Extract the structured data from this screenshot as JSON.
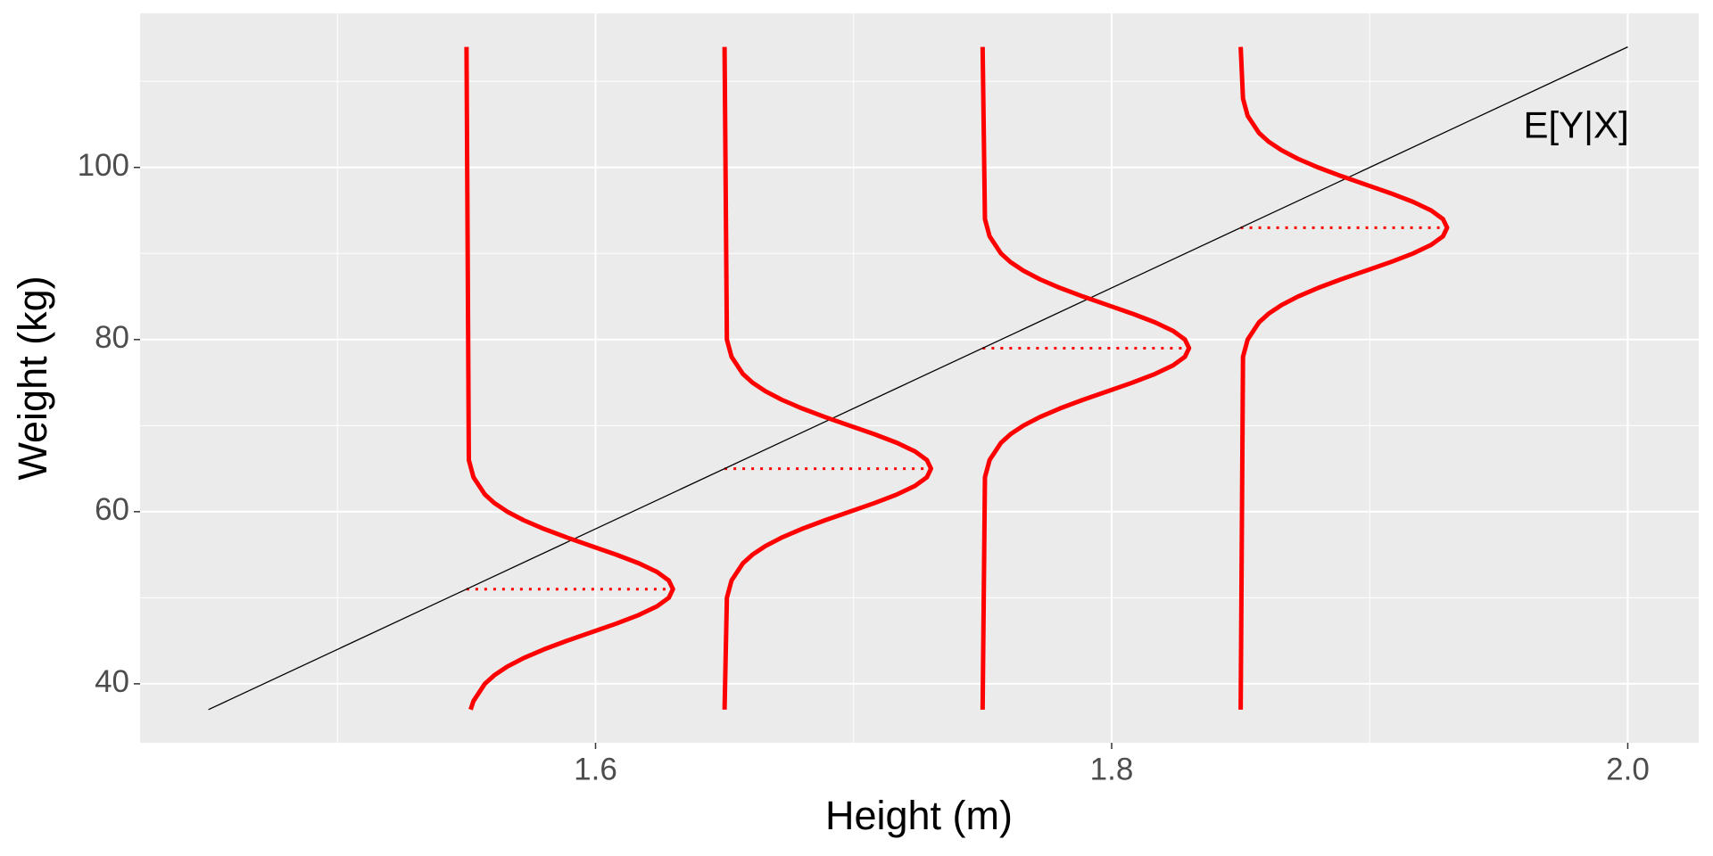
{
  "chart_data": {
    "type": "line",
    "xlabel": "Height (m)",
    "ylabel": "Weight (kg)",
    "xlim": [
      1.4235,
      2.0275
    ],
    "ylim": [
      33.15,
      117.9
    ],
    "xticks": [
      1.6,
      1.8,
      {
        "value": 2.0,
        "label": "2.0"
      }
    ],
    "yticks": [
      40,
      60,
      80,
      100
    ],
    "x_minor_grid": [
      1.5,
      1.7,
      1.9
    ],
    "y_minor_grid": [
      50,
      70,
      90,
      110
    ],
    "grid": true,
    "series": [
      {
        "color": "#ff0000",
        "x": [
          1.5516,
          1.5527,
          1.5571,
          1.5608,
          1.5658,
          1.5722,
          1.58,
          1.5889,
          1.5985,
          1.6081,
          1.6168,
          1.6238,
          1.6284,
          1.63,
          1.6284,
          1.6238,
          1.6168,
          1.6081,
          1.5985,
          1.5889,
          1.58,
          1.5722,
          1.5658,
          1.5608,
          1.5571,
          1.5527,
          1.5509,
          1.55
        ],
        "y": [
          37,
          38,
          40,
          41,
          42,
          43,
          44,
          45,
          46,
          47,
          48,
          49,
          50,
          51,
          52,
          53,
          54,
          55,
          56,
          57,
          58,
          59,
          60,
          61,
          62,
          64,
          66,
          114
        ]
      },
      {
        "color": "#ff0000",
        "x": [
          1.65,
          1.6509,
          1.6527,
          1.6571,
          1.6608,
          1.6658,
          1.6722,
          1.68,
          1.6889,
          1.6985,
          1.7081,
          1.7168,
          1.7238,
          1.7284,
          1.73,
          1.7284,
          1.7238,
          1.7168,
          1.7081,
          1.6985,
          1.6889,
          1.68,
          1.6722,
          1.6658,
          1.6608,
          1.6571,
          1.6527,
          1.6509,
          1.65
        ],
        "y": [
          37,
          50,
          52,
          54,
          55,
          56,
          57,
          58,
          59,
          60,
          61,
          62,
          63,
          64,
          65,
          66,
          67,
          68,
          69,
          70,
          71,
          72,
          73,
          74,
          75,
          76,
          78,
          80,
          114
        ]
      },
      {
        "color": "#ff0000",
        "x": [
          1.75,
          1.7509,
          1.7527,
          1.7571,
          1.7608,
          1.7658,
          1.7722,
          1.78,
          1.7889,
          1.7985,
          1.8081,
          1.8168,
          1.8238,
          1.8284,
          1.83,
          1.8284,
          1.8238,
          1.8168,
          1.8081,
          1.7985,
          1.7889,
          1.78,
          1.7722,
          1.7658,
          1.7608,
          1.7571,
          1.7527,
          1.7509,
          1.75
        ],
        "y": [
          37,
          64,
          66,
          68,
          69,
          70,
          71,
          72,
          73,
          74,
          75,
          76,
          77,
          78,
          79,
          80,
          81,
          82,
          83,
          84,
          85,
          86,
          87,
          88,
          89,
          90,
          92,
          94,
          114
        ]
      },
      {
        "color": "#ff0000",
        "x": [
          1.85,
          1.8509,
          1.8527,
          1.8571,
          1.8608,
          1.8658,
          1.8722,
          1.88,
          1.8889,
          1.8985,
          1.9081,
          1.9168,
          1.9238,
          1.9284,
          1.93,
          1.9284,
          1.9238,
          1.9168,
          1.9081,
          1.8985,
          1.8889,
          1.88,
          1.8722,
          1.8658,
          1.8608,
          1.8571,
          1.8527,
          1.8509,
          1.85
        ],
        "y": [
          37,
          78,
          80,
          82,
          83,
          84,
          85,
          86,
          87,
          88,
          89,
          90,
          91,
          92,
          93,
          94,
          95,
          96,
          97,
          98,
          99,
          100,
          101,
          102,
          103,
          104,
          106,
          108,
          114
        ]
      }
    ],
    "mean_segments": [
      {
        "color": "#ff0000",
        "x": [
          1.55,
          1.63
        ],
        "y": 51
      },
      {
        "color": "#ff0000",
        "x": [
          1.65,
          1.73
        ],
        "y": 65
      },
      {
        "color": "#ff0000",
        "x": [
          1.75,
          1.83
        ],
        "y": 79
      },
      {
        "color": "#ff0000",
        "x": [
          1.85,
          1.93
        ],
        "y": 93
      }
    ],
    "regression_line": {
      "color": "#000000",
      "x": [
        1.45,
        2.0
      ],
      "y": [
        37,
        114
      ]
    },
    "annotation": {
      "text": "E[Y|X]",
      "x": 1.98,
      "y": 104.6
    }
  }
}
